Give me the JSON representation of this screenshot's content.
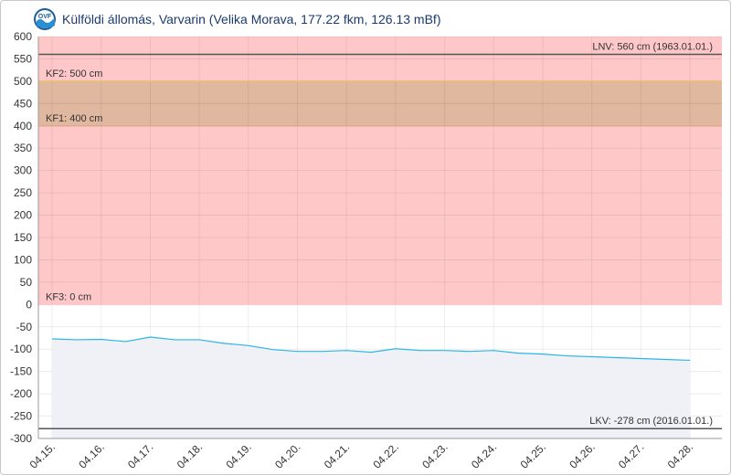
{
  "header": {
    "title": "Külföldi állomás, Varvarin (Velika Morava, 177.22 fkm, 126.13 mBf)",
    "logo_icon": "ovf-water-logo-icon"
  },
  "chart_data": {
    "type": "line",
    "title": "Külföldi állomás, Varvarin (Velika Morava, 177.22 fkm, 126.13 mBf)",
    "xlabel": "",
    "ylabel": "",
    "ylim": [
      -300,
      600
    ],
    "y_ticks": [
      600,
      550,
      500,
      450,
      400,
      350,
      300,
      250,
      200,
      150,
      100,
      50,
      0,
      -50,
      -100,
      -150,
      -200,
      -250,
      -300
    ],
    "x_tick_labels": [
      "04.15.",
      "04.16.",
      "04.17.",
      "04.18.",
      "04.19.",
      "04.20.",
      "04.21.",
      "04.22.",
      "04.23.",
      "04.24.",
      "04.25.",
      "04.26.",
      "04.27.",
      "04.28."
    ],
    "x_range": [
      0,
      13.6
    ],
    "grid": true,
    "series": [
      {
        "color": "#29b6e6",
        "x": [
          0,
          0.5,
          1.0,
          1.5,
          2.0,
          2.5,
          3.0,
          3.5,
          4.0,
          4.5,
          5.0,
          5.5,
          6.0,
          6.5,
          7.0,
          7.5,
          8.0,
          8.5,
          9.0,
          9.5,
          10.0,
          10.5,
          11.0,
          11.5,
          12.0,
          12.5,
          13.0
        ],
        "y": [
          -77,
          -79,
          -78,
          -83,
          -73,
          -79,
          -79,
          -87,
          -92,
          -101,
          -105,
          -105,
          -103,
          -107,
          -99,
          -103,
          -103,
          -105,
          -103,
          -109,
          -111,
          -115,
          -117,
          -119,
          -121,
          -123,
          -125
        ]
      }
    ],
    "bands": [
      {
        "from": 0,
        "to": 600,
        "color": "#ffc8c8"
      },
      {
        "from": 400,
        "to": 500,
        "color": "#e0b8a0"
      }
    ],
    "lines": [
      {
        "value": 560,
        "label": "LNV: 560 cm (1963.01.01.)",
        "color": "#555555"
      },
      {
        "value": 500,
        "label": "KF2: 500 cm",
        "color": "#e8c070"
      },
      {
        "value": 400,
        "label": "KF1: 400 cm",
        "color": "#e0a890"
      },
      {
        "value": 0,
        "label": "KF3: 0 cm",
        "color": "#ffc8c8"
      },
      {
        "value": -278,
        "label": "LKV: -278 cm (2016.01.01.)",
        "color": "#555555"
      }
    ],
    "area_fill_color": "#eff1f6"
  }
}
